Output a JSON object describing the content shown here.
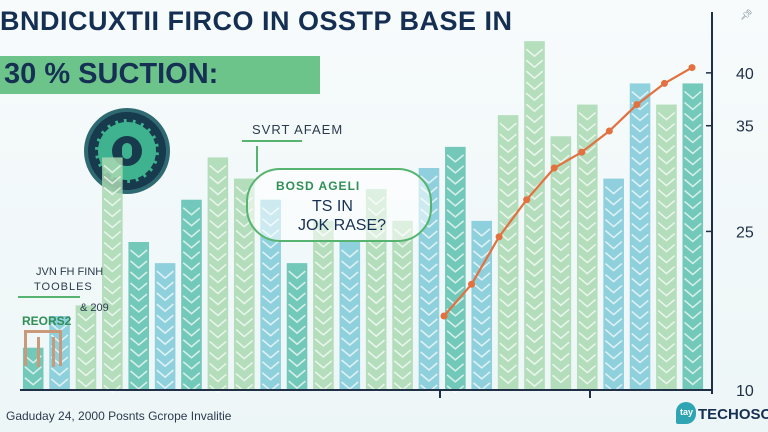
{
  "header": {
    "title": "BNDICUXTII FIRCO IN OSSTP BASE IN",
    "highlight": "30 % SUCTION:"
  },
  "annotations": {
    "top_label": "SVRT AFAEM",
    "bubble_line1": "BOSD AGELI",
    "bubble_line2": "TS IN",
    "bubble_line3": "JOK RASE?"
  },
  "legend": {
    "line1": "JVN FH FINH",
    "line2": "TOOBLES",
    "line3": "& 209",
    "line4": "REORS2"
  },
  "footer": {
    "caption": "Gaduday 24, 2000 Posnts Gcrope Invalitie",
    "logo_mark": "tay",
    "logo_text": "TECHOSC"
  },
  "pin_icon": "pin-icon",
  "colors": {
    "title": "#152f52",
    "highlight_bg": "#6cc48a",
    "line": "#e2713f",
    "bar_teal": "#5cc0ae",
    "bar_blue": "#7ec9d8",
    "bar_green": "#a8d8b0",
    "axis": "#1e2f46"
  },
  "chart_data": {
    "type": "bar",
    "ylim": [
      10,
      45
    ],
    "yticks": [
      10,
      25,
      35,
      40
    ],
    "bars": [
      {
        "value": 14,
        "color": "#5cc0ae"
      },
      {
        "value": 17,
        "color": "#7ec9d8"
      },
      {
        "value": 18,
        "color": "#a8d8b0"
      },
      {
        "value": 32,
        "color": "#a8d8b0"
      },
      {
        "value": 24,
        "color": "#5cc0ae"
      },
      {
        "value": 22,
        "color": "#7ec9d8"
      },
      {
        "value": 28,
        "color": "#5cc0ae"
      },
      {
        "value": 32,
        "color": "#a8d8b0"
      },
      {
        "value": 30,
        "color": "#a8d8b0"
      },
      {
        "value": 28,
        "color": "#7ec9d8"
      },
      {
        "value": 22,
        "color": "#5cc0ae"
      },
      {
        "value": 26,
        "color": "#a8d8b0"
      },
      {
        "value": 24,
        "color": "#7ec9d8"
      },
      {
        "value": 29,
        "color": "#a8d8b0"
      },
      {
        "value": 26,
        "color": "#a8d8b0"
      },
      {
        "value": 31,
        "color": "#7ec9d8"
      },
      {
        "value": 33,
        "color": "#5cc0ae"
      },
      {
        "value": 26,
        "color": "#7ec9d8"
      },
      {
        "value": 36,
        "color": "#a8d8b0"
      },
      {
        "value": 43,
        "color": "#a8d8b0"
      },
      {
        "value": 34,
        "color": "#a8d8b0"
      },
      {
        "value": 37,
        "color": "#a8d8b0"
      },
      {
        "value": 30,
        "color": "#7ec9d8"
      },
      {
        "value": 39,
        "color": "#7ec9d8"
      },
      {
        "value": 37,
        "color": "#a8d8b0"
      },
      {
        "value": 39,
        "color": "#5cc0ae"
      }
    ],
    "line": {
      "values": [
        17,
        20,
        24.5,
        28,
        31,
        32.5,
        34.5,
        37,
        39,
        40.5
      ]
    }
  }
}
